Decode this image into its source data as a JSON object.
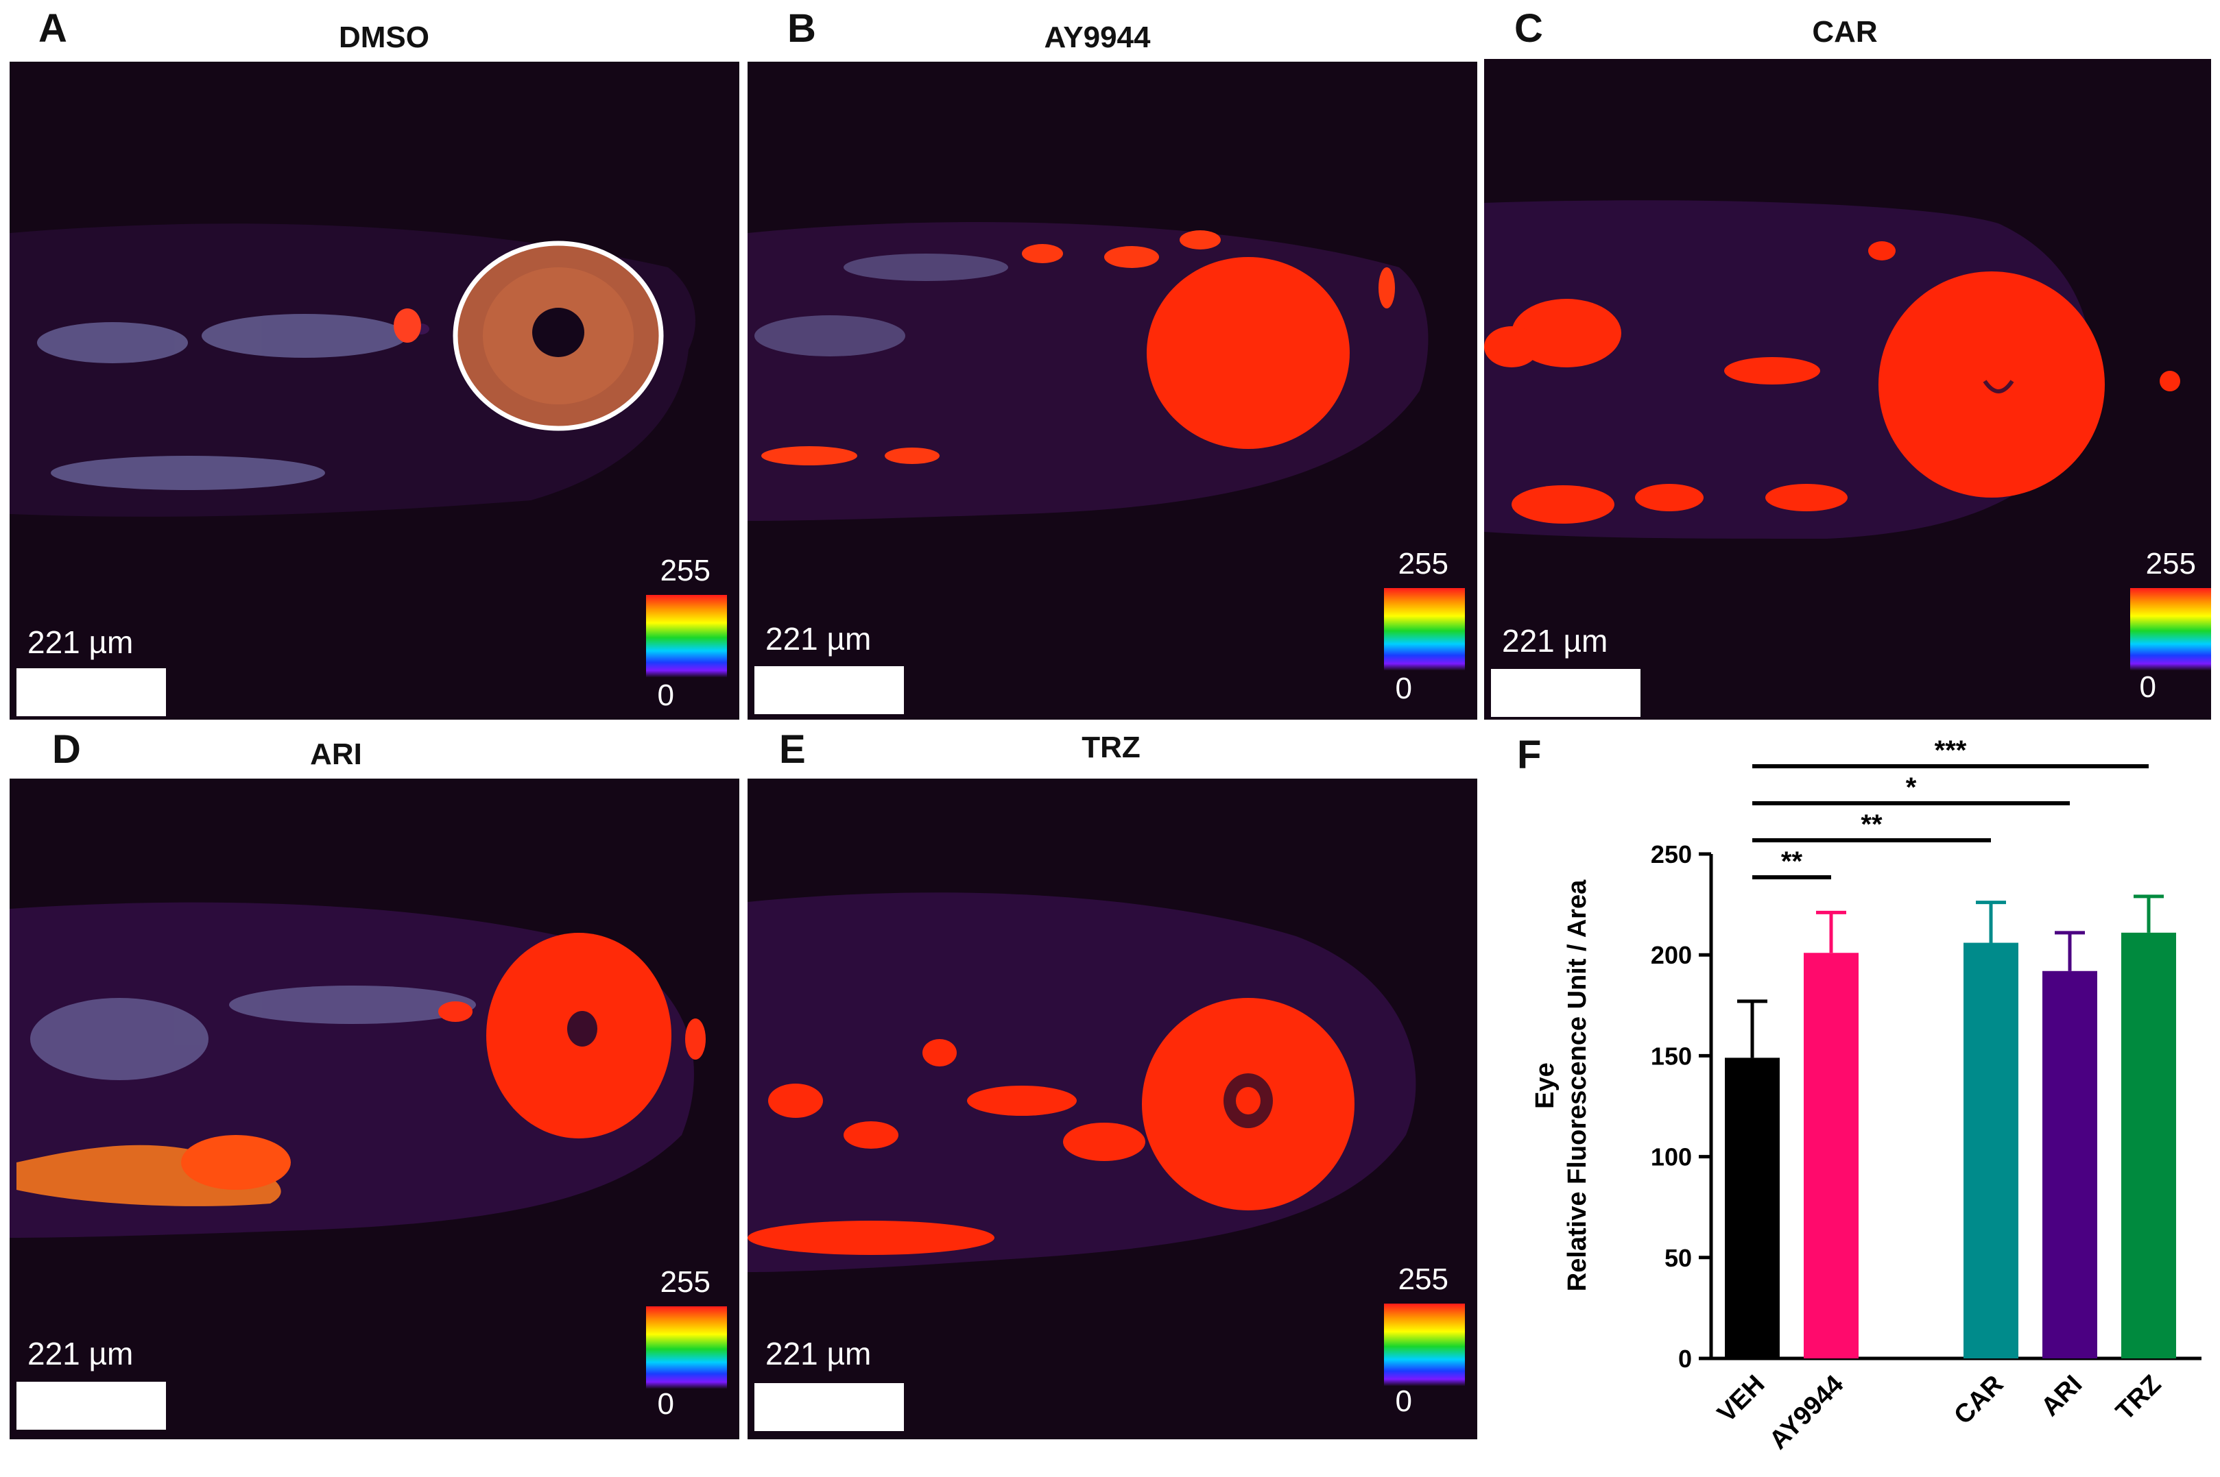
{
  "panels": [
    {
      "letter": "A",
      "title": "DMSO",
      "scale_label": "221 µm",
      "lut_max": "255",
      "lut_min": "0"
    },
    {
      "letter": "B",
      "title": "AY9944",
      "scale_label": "221 µm",
      "lut_max": "255",
      "lut_min": "0"
    },
    {
      "letter": "C",
      "title": "CAR",
      "scale_label": "221 µm",
      "lut_max": "255",
      "lut_min": "0"
    },
    {
      "letter": "D",
      "title": "ARI",
      "scale_label": "221 µm",
      "lut_max": "255",
      "lut_min": "0"
    },
    {
      "letter": "E",
      "title": "TRZ",
      "scale_label": "221 µm",
      "lut_max": "255",
      "lut_min": "0"
    }
  ],
  "panel_f_letter": "F",
  "chart_data": {
    "type": "bar",
    "ylabel_line1": "Eye",
    "ylabel_line2": "Relative Fluorescence Unit / Area",
    "ylim": [
      0,
      250
    ],
    "yticks": [
      "0",
      "50",
      "100",
      "150",
      "200",
      "250"
    ],
    "categories": [
      "VEH",
      "AY9944",
      "CAR",
      "ARI",
      "TRZ"
    ],
    "values": [
      149,
      201,
      206,
      192,
      211
    ],
    "errors": [
      28,
      20,
      20,
      19,
      18
    ],
    "colors": [
      "#000000",
      "#ff0a6c",
      "#008b8b",
      "#4b0082",
      "#008a3e"
    ],
    "significance": [
      {
        "from": "VEH",
        "to": "AY9944",
        "label": "**"
      },
      {
        "from": "VEH",
        "to": "CAR",
        "label": "**"
      },
      {
        "from": "VEH",
        "to": "ARI",
        "label": "*"
      },
      {
        "from": "VEH",
        "to": "TRZ",
        "label": "***"
      }
    ]
  }
}
